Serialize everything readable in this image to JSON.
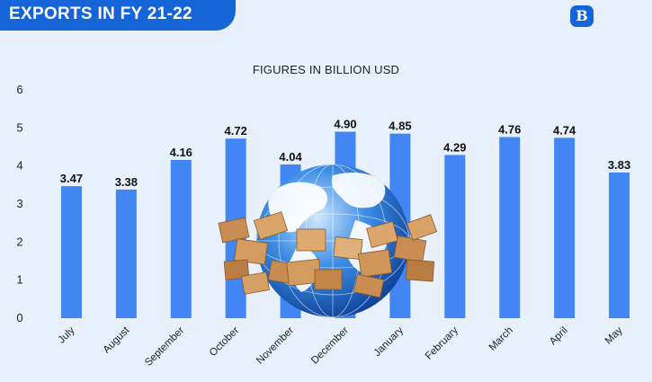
{
  "header": {
    "title": "EXPORTS IN FY 21-22",
    "logo_glyph": "B"
  },
  "colors": {
    "banner": "#1565d8",
    "bar": "#4286f4",
    "background": "#e8f1fb"
  },
  "decorative_image": "globe-with-cardboard-boxes",
  "chart_data": {
    "type": "bar",
    "title": "FIGURES IN BILLION USD",
    "xlabel": "",
    "ylabel": "",
    "ylim": [
      0,
      6
    ],
    "yticks": [
      0,
      1,
      2,
      3,
      4,
      5,
      6
    ],
    "grid": false,
    "categories": [
      "July",
      "August",
      "September",
      "October",
      "November",
      "December",
      "January",
      "February",
      "March",
      "April",
      "May"
    ],
    "values": [
      3.47,
      3.38,
      4.16,
      4.72,
      4.04,
      4.9,
      4.85,
      4.29,
      4.76,
      4.74,
      3.83
    ],
    "data_labels": [
      "3.47",
      "3.38",
      "4.16",
      "4.72",
      "4.04",
      "4.90",
      "4.85",
      "4.29",
      "4.76",
      "4.74",
      "3.83"
    ]
  }
}
